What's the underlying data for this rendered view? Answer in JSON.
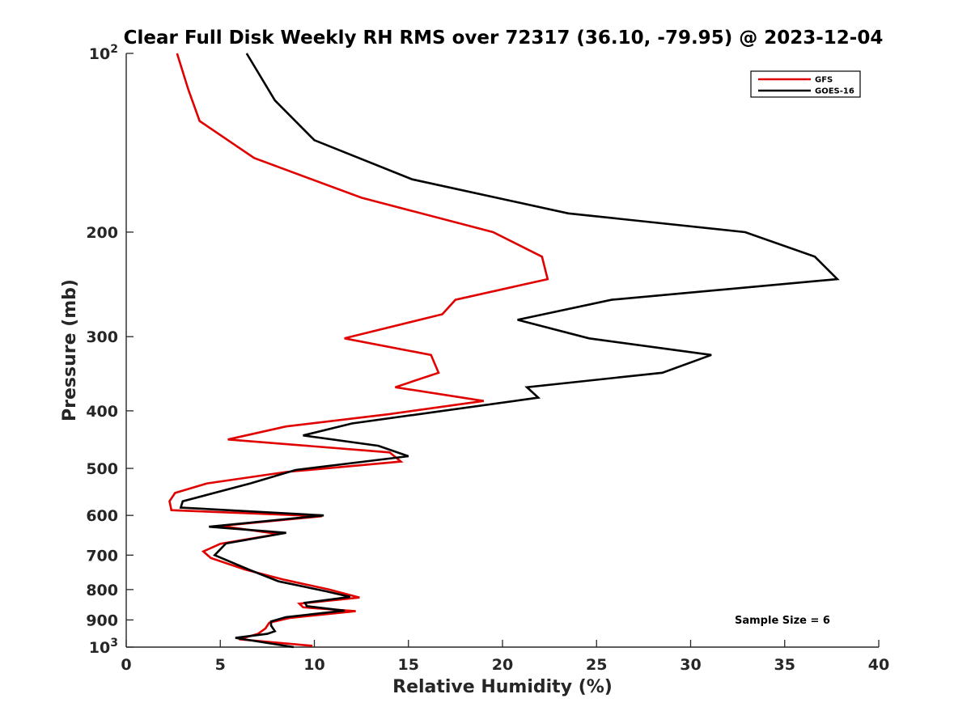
{
  "chart_data": {
    "type": "line",
    "title": "Clear Full Disk Weekly RH RMS over 72317 (36.10, -79.95) @ 2023-12-04",
    "xlabel": "Relative Humidity (%)",
    "ylabel": "Pressure (mb)",
    "xlim": [
      0,
      40
    ],
    "ylim": [
      100,
      1000
    ],
    "y_scale": "log",
    "y_reversed": true,
    "grid": false,
    "legend_position": "top-right",
    "x_ticks": [
      "0",
      "5",
      "10",
      "15",
      "20",
      "25",
      "30",
      "35",
      "40"
    ],
    "y_ticks": [
      {
        "value": 100,
        "base": "10",
        "exp": "2"
      },
      {
        "value": 200,
        "label": "200"
      },
      {
        "value": 300,
        "label": "300"
      },
      {
        "value": 400,
        "label": "400"
      },
      {
        "value": 500,
        "label": "500"
      },
      {
        "value": 600,
        "label": "600"
      },
      {
        "value": 700,
        "label": "700"
      },
      {
        "value": 800,
        "label": "800"
      },
      {
        "value": 900,
        "label": "900"
      },
      {
        "value": 1000,
        "base": "10",
        "exp": "3"
      }
    ],
    "annotation": "Sample Size = 6",
    "series": [
      {
        "name": "GFS",
        "color": "#e00000",
        "points": [
          [
            2.7,
            100
          ],
          [
            3.3,
            115
          ],
          [
            3.9,
            130
          ],
          [
            6.8,
            150
          ],
          [
            12.5,
            175
          ],
          [
            19.5,
            200
          ],
          [
            22.1,
            220
          ],
          [
            22.4,
            240
          ],
          [
            17.5,
            260
          ],
          [
            16.8,
            275
          ],
          [
            11.6,
            302
          ],
          [
            16.2,
            322
          ],
          [
            16.6,
            345
          ],
          [
            14.3,
            365
          ],
          [
            19.0,
            385
          ],
          [
            14.0,
            405
          ],
          [
            8.5,
            425
          ],
          [
            5.4,
            447
          ],
          [
            14.0,
            470
          ],
          [
            14.6,
            487
          ],
          [
            8.5,
            507
          ],
          [
            4.3,
            530
          ],
          [
            2.6,
            550
          ],
          [
            2.3,
            568
          ],
          [
            2.4,
            588
          ],
          [
            10.4,
            602
          ],
          [
            5.0,
            625
          ],
          [
            8.1,
            645
          ],
          [
            5.0,
            670
          ],
          [
            4.1,
            690
          ],
          [
            4.5,
            708
          ],
          [
            6.3,
            740
          ],
          [
            8.4,
            770
          ],
          [
            10.8,
            800
          ],
          [
            12.4,
            825
          ],
          [
            9.2,
            845
          ],
          [
            9.4,
            857
          ],
          [
            12.2,
            870
          ],
          [
            8.7,
            893
          ],
          [
            7.6,
            910
          ],
          [
            7.4,
            930
          ],
          [
            7.0,
            950
          ],
          [
            6.0,
            970
          ],
          [
            9.9,
            995
          ]
        ]
      },
      {
        "name": "GOES-16",
        "color": "#000000",
        "points": [
          [
            6.4,
            100
          ],
          [
            7.9,
            120
          ],
          [
            10.0,
            140
          ],
          [
            15.2,
            163
          ],
          [
            23.5,
            186
          ],
          [
            32.9,
            200
          ],
          [
            36.6,
            220
          ],
          [
            37.8,
            240
          ],
          [
            25.8,
            260
          ],
          [
            20.8,
            281
          ],
          [
            24.6,
            302
          ],
          [
            31.1,
            322
          ],
          [
            28.5,
            345
          ],
          [
            21.3,
            365
          ],
          [
            21.9,
            380
          ],
          [
            12.0,
            420
          ],
          [
            9.4,
            440
          ],
          [
            13.4,
            458
          ],
          [
            15.0,
            477
          ],
          [
            9.0,
            503
          ],
          [
            6.6,
            530
          ],
          [
            3.0,
            568
          ],
          [
            2.9,
            582
          ],
          [
            10.5,
            600
          ],
          [
            4.4,
            627
          ],
          [
            8.5,
            642
          ],
          [
            5.3,
            669
          ],
          [
            4.7,
            700
          ],
          [
            6.5,
            740
          ],
          [
            8.1,
            775
          ],
          [
            10.6,
            805
          ],
          [
            11.9,
            823
          ],
          [
            9.5,
            842
          ],
          [
            9.6,
            853
          ],
          [
            11.6,
            868
          ],
          [
            8.5,
            890
          ],
          [
            7.7,
            905
          ],
          [
            7.7,
            920
          ],
          [
            7.9,
            940
          ],
          [
            7.5,
            950
          ],
          [
            5.8,
            965
          ],
          [
            8.9,
            1000
          ]
        ]
      }
    ]
  }
}
